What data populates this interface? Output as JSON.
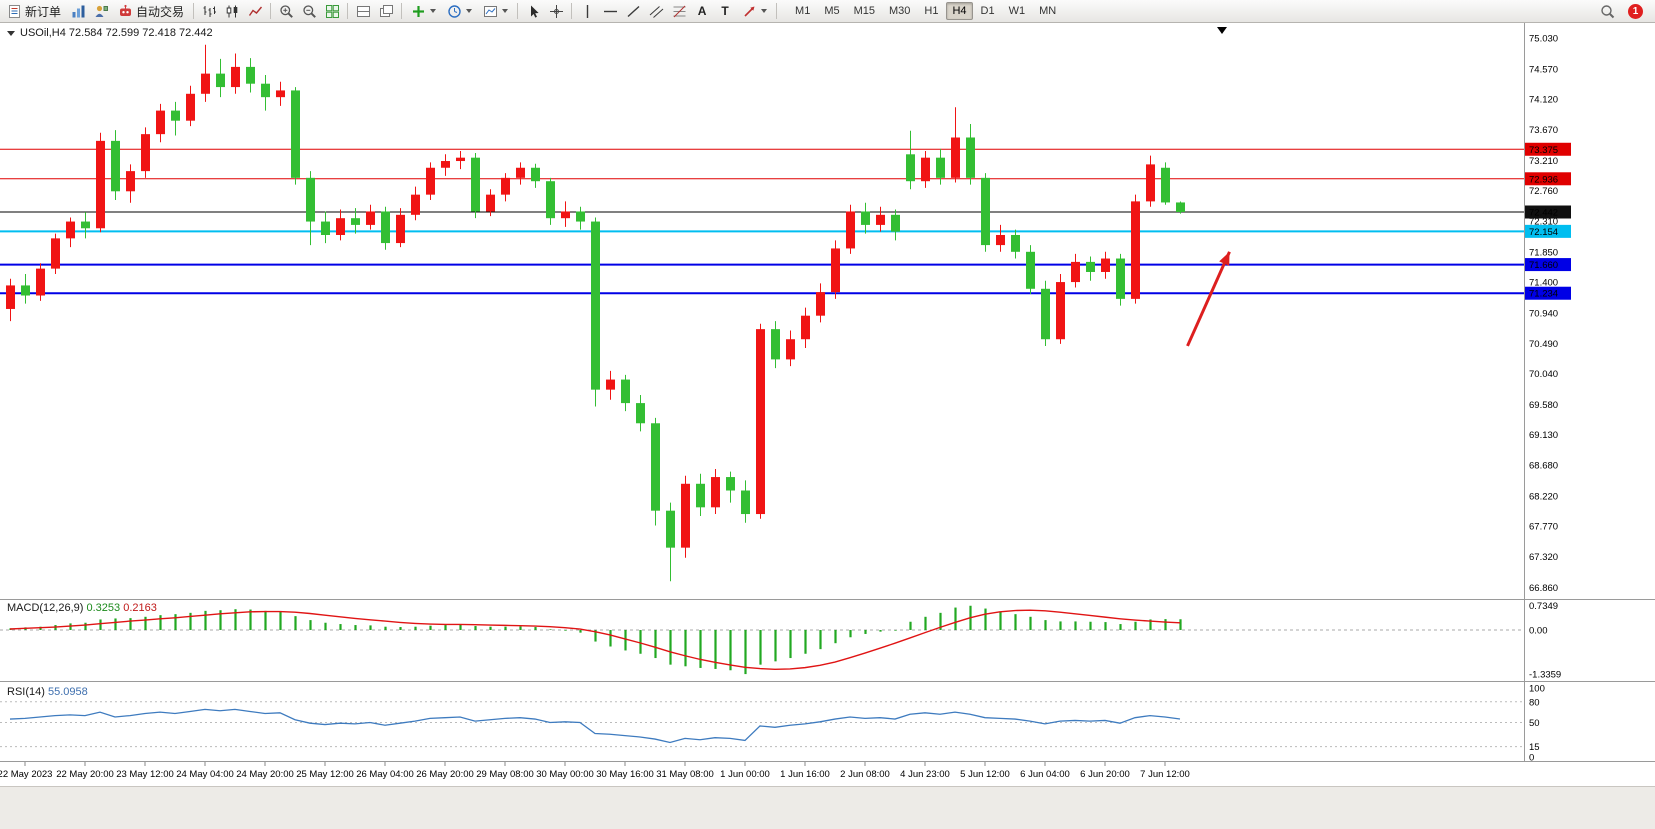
{
  "toolbar": {
    "new_order_label": "新订单",
    "auto_trading_label": "自动交易",
    "text_tool_glyph": "A",
    "label_tool_glyph": "T",
    "timeframes": [
      "M1",
      "M5",
      "M15",
      "M30",
      "H1",
      "H4",
      "D1",
      "W1",
      "MN"
    ],
    "active_timeframe": "H4",
    "notification_count": "1"
  },
  "chart": {
    "title": "USOil,H4 72.584 72.599 72.418 72.442",
    "price_axis": [
      "75.030",
      "74.570",
      "74.120",
      "73.670",
      "73.210",
      "72.760",
      "72.310",
      "71.850",
      "71.400",
      "70.940",
      "70.490",
      "70.040",
      "69.580",
      "69.130",
      "68.680",
      "68.220",
      "67.770",
      "67.320",
      "66.860"
    ],
    "hlines": [
      {
        "label": "73.375",
        "price": 73.375,
        "color": "#E00000",
        "thickness": 1,
        "badge_bg": "#E00000",
        "badge_fg": "#FFFFFF"
      },
      {
        "label": "72.936",
        "price": 72.936,
        "color": "#E00000",
        "thickness": 1,
        "badge_bg": "#E00000",
        "badge_fg": "#FFFFFF"
      },
      {
        "label": "72.442",
        "price": 72.442,
        "color": "#000000",
        "thickness": 1,
        "badge_bg": "#101010",
        "badge_fg": "#FFFFFF"
      },
      {
        "label": "72.154",
        "price": 72.154,
        "color": "#00BEF0",
        "thickness": 2,
        "badge_bg": "#00BEF0",
        "badge_fg": "#000000"
      },
      {
        "label": "71.660",
        "price": 71.66,
        "color": "#0000E6",
        "thickness": 2,
        "badge_bg": "#0000E6",
        "badge_fg": "#FFFFFF"
      },
      {
        "label": "71.234",
        "price": 71.234,
        "color": "#0000E6",
        "thickness": 2,
        "badge_bg": "#0000E6",
        "badge_fg": "#FFFFFF"
      }
    ],
    "arrow": {
      "from": {
        "index": 78.5,
        "price": 70.45
      },
      "to": {
        "index": 81.3,
        "price": 71.85
      },
      "color": "#DD1F1F"
    }
  },
  "macd": {
    "label": "MACD(12,26,9)",
    "main_value": "0.3253",
    "signal_value": "0.2163",
    "axis": [
      "0.7349",
      "0.00",
      "-1.3359"
    ],
    "hist_color": "#22A822",
    "signal_color": "#E01414"
  },
  "rsi": {
    "label": "RSI(14)",
    "value": "55.0958",
    "axis": [
      "100",
      "80",
      "50",
      "15",
      "0"
    ],
    "levels": [
      80,
      50,
      15
    ],
    "line_color": "#3E7BBF"
  },
  "chart_data": {
    "type": "candlestick",
    "symbol": "USOil",
    "period": "H4",
    "up_color": "#F01414",
    "down_color": "#33BE33",
    "ohlc": [
      [
        71.0,
        71.45,
        70.82,
        71.35
      ],
      [
        71.35,
        71.52,
        71.08,
        71.2
      ],
      [
        71.2,
        71.68,
        71.12,
        71.6
      ],
      [
        71.6,
        72.12,
        71.52,
        72.05
      ],
      [
        72.05,
        72.36,
        71.92,
        72.3
      ],
      [
        72.3,
        72.44,
        72.05,
        72.2
      ],
      [
        72.2,
        73.62,
        72.14,
        73.5
      ],
      [
        73.5,
        73.66,
        72.62,
        72.75
      ],
      [
        72.75,
        73.15,
        72.58,
        73.05
      ],
      [
        73.05,
        73.7,
        72.95,
        73.6
      ],
      [
        73.6,
        74.05,
        73.48,
        73.95
      ],
      [
        73.95,
        74.08,
        73.58,
        73.8
      ],
      [
        73.8,
        74.32,
        73.72,
        74.2
      ],
      [
        74.2,
        74.93,
        74.08,
        74.5
      ],
      [
        74.5,
        74.72,
        74.15,
        74.3
      ],
      [
        74.3,
        74.8,
        74.2,
        74.6
      ],
      [
        74.6,
        74.73,
        74.22,
        74.35
      ],
      [
        74.35,
        74.48,
        73.95,
        74.15
      ],
      [
        74.15,
        74.38,
        74.02,
        74.25
      ],
      [
        74.25,
        74.3,
        72.85,
        72.95
      ],
      [
        72.95,
        73.05,
        71.95,
        72.3
      ],
      [
        72.3,
        72.45,
        71.98,
        72.1
      ],
      [
        72.1,
        72.48,
        72.02,
        72.35
      ],
      [
        72.35,
        72.5,
        72.12,
        72.25
      ],
      [
        72.25,
        72.55,
        72.18,
        72.45
      ],
      [
        72.45,
        72.52,
        71.88,
        71.98
      ],
      [
        71.98,
        72.5,
        71.92,
        72.4
      ],
      [
        72.4,
        72.82,
        72.32,
        72.7
      ],
      [
        72.7,
        73.18,
        72.62,
        73.1
      ],
      [
        73.1,
        73.3,
        72.98,
        73.2
      ],
      [
        73.2,
        73.35,
        73.08,
        73.25
      ],
      [
        73.25,
        73.32,
        72.35,
        72.45
      ],
      [
        72.45,
        72.78,
        72.38,
        72.7
      ],
      [
        72.7,
        73.02,
        72.6,
        72.95
      ],
      [
        72.95,
        73.18,
        72.85,
        73.1
      ],
      [
        73.1,
        73.16,
        72.8,
        72.9
      ],
      [
        72.9,
        72.95,
        72.25,
        72.35
      ],
      [
        72.35,
        72.6,
        72.22,
        72.45
      ],
      [
        72.45,
        72.52,
        72.18,
        72.3
      ],
      [
        72.3,
        72.36,
        69.55,
        69.8
      ],
      [
        69.8,
        70.08,
        69.65,
        69.95
      ],
      [
        69.95,
        70.02,
        69.48,
        69.6
      ],
      [
        69.6,
        69.72,
        69.18,
        69.3
      ],
      [
        69.3,
        69.38,
        67.78,
        68.0
      ],
      [
        68.0,
        68.12,
        66.95,
        67.45
      ],
      [
        67.45,
        68.52,
        67.3,
        68.4
      ],
      [
        68.4,
        68.55,
        67.92,
        68.05
      ],
      [
        68.05,
        68.62,
        67.95,
        68.5
      ],
      [
        68.5,
        68.58,
        68.12,
        68.3
      ],
      [
        68.3,
        68.45,
        67.82,
        67.95
      ],
      [
        67.95,
        70.78,
        67.88,
        70.7
      ],
      [
        70.7,
        70.82,
        70.12,
        70.25
      ],
      [
        70.25,
        70.68,
        70.15,
        70.55
      ],
      [
        70.55,
        71.02,
        70.42,
        70.9
      ],
      [
        70.9,
        71.38,
        70.8,
        71.25
      ],
      [
        71.25,
        72.02,
        71.15,
        71.9
      ],
      [
        71.9,
        72.55,
        71.82,
        72.45
      ],
      [
        72.45,
        72.58,
        72.12,
        72.25
      ],
      [
        72.25,
        72.52,
        72.15,
        72.4
      ],
      [
        72.4,
        72.48,
        72.02,
        72.15
      ],
      [
        73.3,
        73.65,
        72.78,
        72.9
      ],
      [
        72.9,
        73.35,
        72.8,
        73.25
      ],
      [
        73.25,
        73.38,
        72.85,
        72.95
      ],
      [
        72.95,
        74.0,
        72.88,
        73.55
      ],
      [
        73.55,
        73.75,
        72.85,
        72.95
      ],
      [
        72.95,
        73.02,
        71.85,
        71.95
      ],
      [
        71.95,
        72.25,
        71.85,
        72.1
      ],
      [
        72.1,
        72.18,
        71.75,
        71.85
      ],
      [
        71.85,
        71.95,
        71.22,
        71.3
      ],
      [
        71.3,
        71.42,
        70.45,
        70.55
      ],
      [
        70.55,
        71.52,
        70.48,
        71.4
      ],
      [
        71.4,
        71.82,
        71.32,
        71.7
      ],
      [
        71.7,
        71.78,
        71.42,
        71.55
      ],
      [
        71.55,
        71.85,
        71.45,
        71.75
      ],
      [
        71.75,
        71.82,
        71.05,
        71.15
      ],
      [
        71.15,
        72.7,
        71.08,
        72.6
      ],
      [
        72.6,
        73.28,
        72.52,
        73.15
      ],
      [
        73.1,
        73.18,
        72.55,
        72.584
      ],
      [
        72.584,
        72.599,
        72.418,
        72.442
      ]
    ],
    "x_labels": [
      "22 May 2023",
      "22 May 20:00",
      "23 May 12:00",
      "24 May 04:00",
      "24 May 20:00",
      "25 May 12:00",
      "26 May 04:00",
      "26 May 20:00",
      "29 May 08:00",
      "30 May 00:00",
      "30 May 16:00",
      "31 May 08:00",
      "1 Jun 00:00",
      "1 Jun 16:00",
      "2 Jun 08:00",
      "4 Jun 23:00",
      "5 Jun 12:00",
      "6 Jun 04:00",
      "6 Jun 20:00",
      "7 Jun 12:00"
    ],
    "x_label_indices": [
      1,
      5,
      9,
      13,
      17,
      21,
      25,
      29,
      33,
      37,
      41,
      45,
      49,
      53,
      57,
      61,
      65,
      69,
      73,
      77
    ],
    "macd_hist": [
      0.05,
      0.08,
      0.1,
      0.15,
      0.2,
      0.22,
      0.32,
      0.35,
      0.36,
      0.4,
      0.45,
      0.48,
      0.52,
      0.58,
      0.6,
      0.63,
      0.62,
      0.58,
      0.55,
      0.42,
      0.3,
      0.22,
      0.18,
      0.15,
      0.14,
      0.1,
      0.09,
      0.1,
      0.13,
      0.15,
      0.17,
      0.12,
      0.1,
      0.1,
      0.11,
      0.09,
      0.02,
      -0.02,
      -0.08,
      -0.35,
      -0.5,
      -0.62,
      -0.72,
      -0.85,
      -1.05,
      -1.1,
      -1.15,
      -1.18,
      -1.22,
      -1.3359,
      -1.05,
      -0.95,
      -0.85,
      -0.72,
      -0.58,
      -0.4,
      -0.22,
      -0.12,
      -0.05,
      -0.02,
      0.25,
      0.4,
      0.52,
      0.68,
      0.7349,
      0.65,
      0.55,
      0.48,
      0.4,
      0.3,
      0.26,
      0.26,
      0.25,
      0.24,
      0.18,
      0.25,
      0.32,
      0.33,
      0.3253
    ],
    "macd_signal": [
      0.03,
      0.05,
      0.07,
      0.09,
      0.12,
      0.15,
      0.19,
      0.23,
      0.27,
      0.3,
      0.34,
      0.37,
      0.41,
      0.45,
      0.49,
      0.52,
      0.55,
      0.56,
      0.56,
      0.54,
      0.5,
      0.45,
      0.4,
      0.35,
      0.31,
      0.27,
      0.23,
      0.2,
      0.18,
      0.17,
      0.17,
      0.16,
      0.15,
      0.14,
      0.13,
      0.12,
      0.1,
      0.07,
      0.03,
      -0.05,
      -0.15,
      -0.27,
      -0.39,
      -0.52,
      -0.66,
      -0.78,
      -0.89,
      -0.98,
      -1.06,
      -1.13,
      -1.17,
      -1.19,
      -1.18,
      -1.14,
      -1.07,
      -0.97,
      -0.84,
      -0.7,
      -0.55,
      -0.4,
      -0.24,
      -0.08,
      0.08,
      0.23,
      0.37,
      0.48,
      0.55,
      0.59,
      0.6,
      0.58,
      0.54,
      0.49,
      0.44,
      0.39,
      0.34,
      0.3,
      0.27,
      0.24,
      0.2163
    ],
    "rsi": [
      55,
      56,
      58,
      60,
      61,
      60,
      65,
      58,
      60,
      63,
      65,
      63,
      66,
      69,
      67,
      69,
      66,
      63,
      64,
      54,
      49,
      47,
      49,
      48,
      50,
      46,
      49,
      52,
      56,
      57,
      58,
      52,
      54,
      56,
      57,
      55,
      50,
      51,
      50,
      34,
      33,
      31,
      29,
      26,
      21,
      27,
      25,
      28,
      27,
      24,
      45,
      43,
      46,
      48,
      51,
      55,
      58,
      56,
      57,
      55,
      62,
      64,
      62,
      65,
      62,
      57,
      56,
      55,
      52,
      48,
      52,
      53,
      52,
      53,
      49,
      57,
      60,
      58,
      55.1
    ]
  }
}
